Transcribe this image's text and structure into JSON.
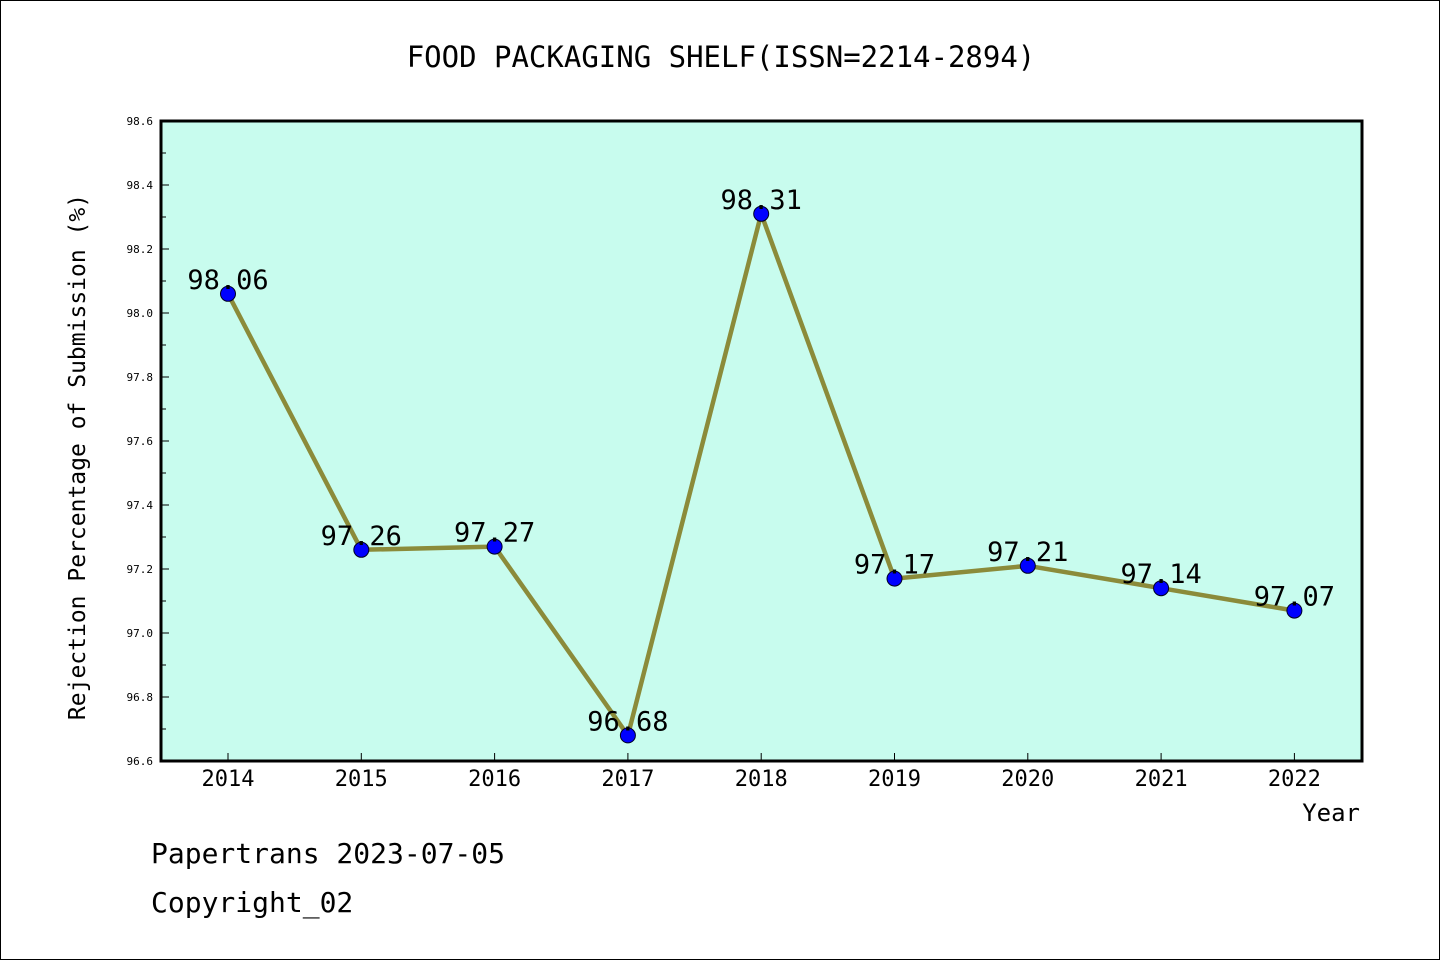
{
  "chart_data": {
    "type": "line",
    "title": "FOOD PACKAGING SHELF(ISSN=2214-2894)",
    "xlabel": "Year",
    "ylabel": "Rejection Percentage of Submission (%)",
    "categories": [
      "2014",
      "2015",
      "2016",
      "2017",
      "2018",
      "2019",
      "2020",
      "2021",
      "2022"
    ],
    "values": [
      98.06,
      97.26,
      97.27,
      96.68,
      98.31,
      97.17,
      97.21,
      97.14,
      97.07
    ],
    "data_labels": [
      "98.06",
      "97.26",
      "97.27",
      "96.68",
      "98.31",
      "97.17",
      "97.21",
      "97.14",
      "97.07"
    ],
    "ylim": [
      96.6,
      98.6
    ],
    "yticks": [
      "96.6",
      "96.8",
      "97.0",
      "97.2",
      "97.4",
      "97.6",
      "97.8",
      "98.0",
      "98.2",
      "98.4",
      "98.6"
    ],
    "grid": false,
    "colors": {
      "plot_background": "#c8fcee",
      "line": "#8b8b3a",
      "marker": "#0000ff"
    }
  },
  "footer": {
    "line1": "Papertrans 2023-07-05",
    "line2": "Copyright_02"
  }
}
